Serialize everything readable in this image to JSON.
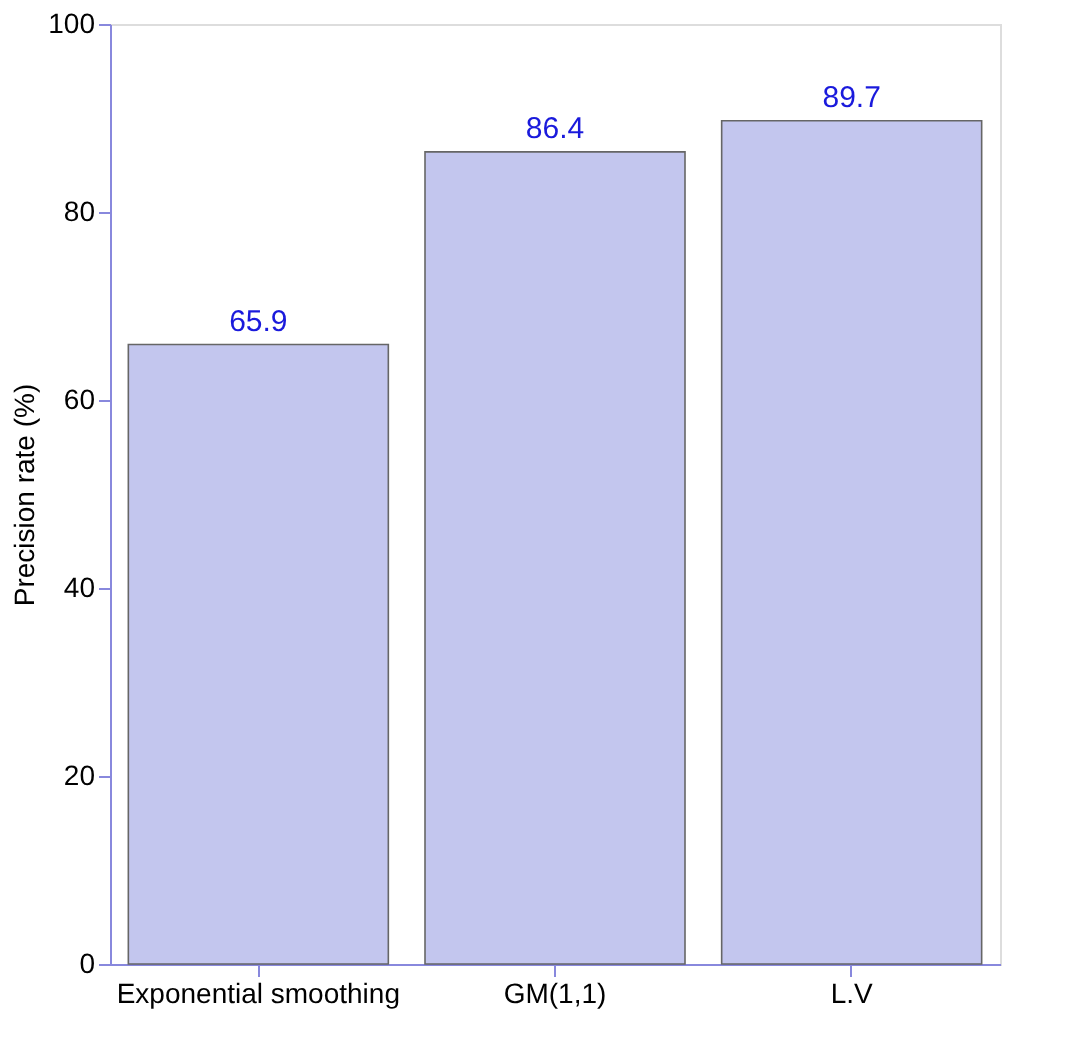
{
  "chart_data": {
    "type": "bar",
    "ylabel": "Precision rate (%)",
    "categories": [
      "Exponential smoothing",
      "GM(1,1)",
      "L.V"
    ],
    "values": [
      65.9,
      86.4,
      89.7
    ],
    "color": "#c3c6ee",
    "ylim": [
      0,
      100
    ],
    "yticks": [
      0,
      20,
      40,
      60,
      80,
      100
    ],
    "grid": false,
    "data_labels": true
  }
}
